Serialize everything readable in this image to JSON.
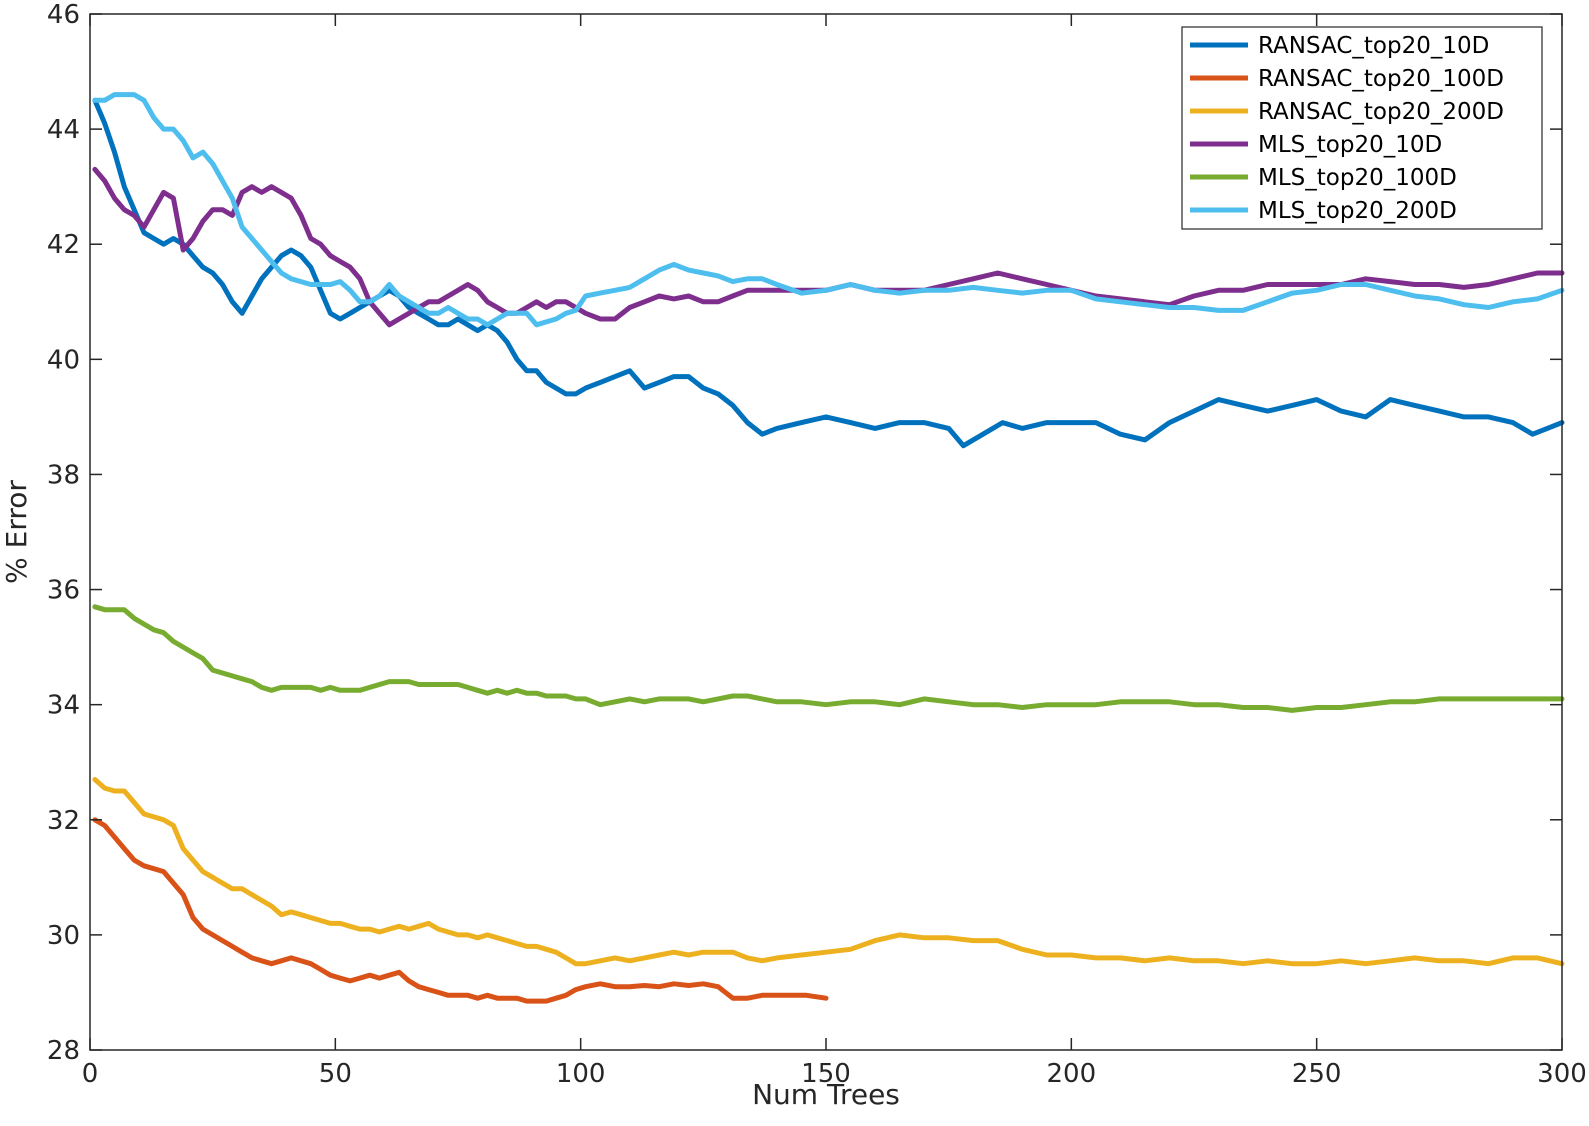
{
  "chart_data": {
    "type": "line",
    "xlabel": "Num Trees",
    "ylabel": "% Error",
    "xlim": [
      0,
      300
    ],
    "ylim": [
      28,
      46
    ],
    "xticks": [
      0,
      50,
      100,
      150,
      200,
      250,
      300
    ],
    "yticks": [
      28,
      30,
      32,
      34,
      36,
      38,
      40,
      42,
      44,
      46
    ],
    "grid": false,
    "legend_position": "top-right",
    "series": [
      {
        "name": "RANSAC_top20_10D",
        "color": "#0072BD",
        "x": [
          1,
          3,
          5,
          7,
          9,
          11,
          13,
          15,
          17,
          19,
          21,
          23,
          25,
          27,
          29,
          31,
          33,
          35,
          37,
          39,
          41,
          43,
          45,
          47,
          49,
          51,
          53,
          55,
          57,
          59,
          61,
          63,
          65,
          67,
          69,
          71,
          73,
          75,
          77,
          79,
          81,
          83,
          85,
          87,
          89,
          91,
          93,
          95,
          97,
          99,
          101,
          104,
          107,
          110,
          113,
          116,
          119,
          122,
          125,
          128,
          131,
          134,
          137,
          140,
          145,
          150,
          155,
          160,
          165,
          170,
          175,
          178,
          182,
          186,
          190,
          195,
          200,
          205,
          210,
          215,
          220,
          225,
          230,
          235,
          240,
          245,
          250,
          255,
          260,
          265,
          270,
          275,
          280,
          285,
          290,
          294,
          297,
          300
        ],
        "y": [
          44.5,
          44.1,
          43.6,
          43.0,
          42.6,
          42.2,
          42.1,
          42.0,
          42.1,
          42.0,
          41.8,
          41.6,
          41.5,
          41.3,
          41.0,
          40.8,
          41.1,
          41.4,
          41.6,
          41.8,
          41.9,
          41.8,
          41.6,
          41.2,
          40.8,
          40.7,
          40.8,
          40.9,
          41.0,
          41.1,
          41.2,
          41.1,
          40.9,
          40.8,
          40.7,
          40.6,
          40.6,
          40.7,
          40.6,
          40.5,
          40.6,
          40.5,
          40.3,
          40.0,
          39.8,
          39.8,
          39.6,
          39.5,
          39.4,
          39.4,
          39.5,
          39.6,
          39.7,
          39.8,
          39.5,
          39.6,
          39.7,
          39.7,
          39.5,
          39.4,
          39.2,
          38.9,
          38.7,
          38.8,
          38.9,
          39.0,
          38.9,
          38.8,
          38.9,
          38.9,
          38.8,
          38.5,
          38.7,
          38.9,
          38.8,
          38.9,
          38.9,
          38.9,
          38.7,
          38.6,
          38.9,
          39.1,
          39.3,
          39.2,
          39.1,
          39.2,
          39.3,
          39.1,
          39.0,
          39.3,
          39.2,
          39.1,
          39.0,
          39.0,
          38.9,
          38.7,
          38.8,
          38.9
        ]
      },
      {
        "name": "RANSAC_top20_100D",
        "color": "#D95319",
        "x": [
          1,
          3,
          5,
          7,
          9,
          11,
          13,
          15,
          17,
          19,
          21,
          23,
          25,
          27,
          29,
          31,
          33,
          35,
          37,
          39,
          41,
          43,
          45,
          47,
          49,
          51,
          53,
          55,
          57,
          59,
          61,
          63,
          65,
          67,
          69,
          71,
          73,
          75,
          77,
          79,
          81,
          83,
          85,
          87,
          89,
          91,
          93,
          95,
          97,
          99,
          101,
          104,
          107,
          110,
          113,
          116,
          119,
          122,
          125,
          128,
          131,
          134,
          137,
          140,
          143,
          146,
          150
        ],
        "y": [
          32.0,
          31.9,
          31.7,
          31.5,
          31.3,
          31.2,
          31.15,
          31.1,
          30.9,
          30.7,
          30.3,
          30.1,
          30.0,
          29.9,
          29.8,
          29.7,
          29.6,
          29.55,
          29.5,
          29.55,
          29.6,
          29.55,
          29.5,
          29.4,
          29.3,
          29.25,
          29.2,
          29.25,
          29.3,
          29.25,
          29.3,
          29.35,
          29.2,
          29.1,
          29.05,
          29.0,
          28.95,
          28.95,
          28.95,
          28.9,
          28.95,
          28.9,
          28.9,
          28.9,
          28.85,
          28.85,
          28.85,
          28.9,
          28.95,
          29.05,
          29.1,
          29.15,
          29.1,
          29.1,
          29.12,
          29.1,
          29.15,
          29.12,
          29.15,
          29.1,
          28.9,
          28.9,
          28.95,
          28.95,
          28.95,
          28.95,
          28.9
        ]
      },
      {
        "name": "RANSAC_top20_200D",
        "color": "#EDB120",
        "x": [
          1,
          3,
          5,
          7,
          9,
          11,
          13,
          15,
          17,
          19,
          21,
          23,
          25,
          27,
          29,
          31,
          33,
          35,
          37,
          39,
          41,
          43,
          45,
          47,
          49,
          51,
          53,
          55,
          57,
          59,
          61,
          63,
          65,
          67,
          69,
          71,
          73,
          75,
          77,
          79,
          81,
          83,
          85,
          87,
          89,
          91,
          93,
          95,
          97,
          99,
          101,
          104,
          107,
          110,
          113,
          116,
          119,
          122,
          125,
          128,
          131,
          134,
          137,
          140,
          145,
          150,
          155,
          160,
          165,
          170,
          175,
          180,
          185,
          190,
          195,
          200,
          205,
          210,
          215,
          220,
          225,
          230,
          235,
          240,
          245,
          250,
          255,
          260,
          265,
          270,
          275,
          280,
          285,
          290,
          295,
          300
        ],
        "y": [
          32.7,
          32.55,
          32.5,
          32.5,
          32.3,
          32.1,
          32.05,
          32.0,
          31.9,
          31.5,
          31.3,
          31.1,
          31.0,
          30.9,
          30.8,
          30.8,
          30.7,
          30.6,
          30.5,
          30.35,
          30.4,
          30.35,
          30.3,
          30.25,
          30.2,
          30.2,
          30.15,
          30.1,
          30.1,
          30.05,
          30.1,
          30.15,
          30.1,
          30.15,
          30.2,
          30.1,
          30.05,
          30.0,
          30.0,
          29.95,
          30.0,
          29.95,
          29.9,
          29.85,
          29.8,
          29.8,
          29.75,
          29.7,
          29.6,
          29.5,
          29.5,
          29.55,
          29.6,
          29.55,
          29.6,
          29.65,
          29.7,
          29.65,
          29.7,
          29.7,
          29.7,
          29.6,
          29.55,
          29.6,
          29.65,
          29.7,
          29.75,
          29.9,
          30.0,
          29.95,
          29.95,
          29.9,
          29.9,
          29.75,
          29.65,
          29.65,
          29.6,
          29.6,
          29.55,
          29.6,
          29.55,
          29.55,
          29.5,
          29.55,
          29.5,
          29.5,
          29.55,
          29.5,
          29.55,
          29.6,
          29.55,
          29.55,
          29.5,
          29.6,
          29.6,
          29.5
        ]
      },
      {
        "name": "MLS_top20_10D",
        "color": "#7E2F8E",
        "x": [
          1,
          3,
          5,
          7,
          9,
          11,
          13,
          15,
          17,
          19,
          21,
          23,
          25,
          27,
          29,
          31,
          33,
          35,
          37,
          39,
          41,
          43,
          45,
          47,
          49,
          51,
          53,
          55,
          57,
          59,
          61,
          63,
          65,
          67,
          69,
          71,
          73,
          75,
          77,
          79,
          81,
          83,
          85,
          87,
          89,
          91,
          93,
          95,
          97,
          99,
          101,
          104,
          107,
          110,
          113,
          116,
          119,
          122,
          125,
          128,
          131,
          134,
          137,
          140,
          145,
          150,
          155,
          160,
          165,
          170,
          175,
          180,
          185,
          190,
          195,
          200,
          205,
          210,
          215,
          220,
          225,
          230,
          235,
          240,
          245,
          250,
          255,
          260,
          265,
          270,
          275,
          280,
          285,
          290,
          295,
          300
        ],
        "y": [
          43.3,
          43.1,
          42.8,
          42.6,
          42.5,
          42.3,
          42.6,
          42.9,
          42.8,
          41.9,
          42.1,
          42.4,
          42.6,
          42.6,
          42.5,
          42.9,
          43.0,
          42.9,
          43.0,
          42.9,
          42.8,
          42.5,
          42.1,
          42.0,
          41.8,
          41.7,
          41.6,
          41.4,
          41.0,
          40.8,
          40.6,
          40.7,
          40.8,
          40.9,
          41.0,
          41.0,
          41.1,
          41.2,
          41.3,
          41.2,
          41.0,
          40.9,
          40.8,
          40.8,
          40.9,
          41.0,
          40.9,
          41.0,
          41.0,
          40.9,
          40.8,
          40.7,
          40.7,
          40.9,
          41.0,
          41.1,
          41.05,
          41.1,
          41.0,
          41.0,
          41.1,
          41.2,
          41.2,
          41.2,
          41.2,
          41.2,
          41.3,
          41.2,
          41.2,
          41.2,
          41.3,
          41.4,
          41.5,
          41.4,
          41.3,
          41.2,
          41.1,
          41.05,
          41.0,
          40.95,
          41.1,
          41.2,
          41.2,
          41.3,
          41.3,
          41.3,
          41.3,
          41.4,
          41.35,
          41.3,
          41.3,
          41.25,
          41.3,
          41.4,
          41.5,
          41.5
        ]
      },
      {
        "name": "MLS_top20_100D",
        "color": "#77AC30",
        "x": [
          1,
          3,
          5,
          7,
          9,
          11,
          13,
          15,
          17,
          19,
          21,
          23,
          25,
          27,
          29,
          31,
          33,
          35,
          37,
          39,
          41,
          43,
          45,
          47,
          49,
          51,
          53,
          55,
          57,
          59,
          61,
          63,
          65,
          67,
          69,
          71,
          73,
          75,
          77,
          79,
          81,
          83,
          85,
          87,
          89,
          91,
          93,
          95,
          97,
          99,
          101,
          104,
          107,
          110,
          113,
          116,
          119,
          122,
          125,
          128,
          131,
          134,
          137,
          140,
          145,
          150,
          155,
          160,
          165,
          170,
          175,
          180,
          185,
          190,
          195,
          200,
          205,
          210,
          215,
          220,
          225,
          230,
          235,
          240,
          245,
          250,
          255,
          260,
          265,
          270,
          275,
          280,
          285,
          290,
          295,
          300
        ],
        "y": [
          35.7,
          35.65,
          35.65,
          35.65,
          35.5,
          35.4,
          35.3,
          35.25,
          35.1,
          35.0,
          34.9,
          34.8,
          34.6,
          34.55,
          34.5,
          34.45,
          34.4,
          34.3,
          34.25,
          34.3,
          34.3,
          34.3,
          34.3,
          34.25,
          34.3,
          34.25,
          34.25,
          34.25,
          34.3,
          34.35,
          34.4,
          34.4,
          34.4,
          34.35,
          34.35,
          34.35,
          34.35,
          34.35,
          34.3,
          34.25,
          34.2,
          34.25,
          34.2,
          34.25,
          34.2,
          34.2,
          34.15,
          34.15,
          34.15,
          34.1,
          34.1,
          34.0,
          34.05,
          34.1,
          34.05,
          34.1,
          34.1,
          34.1,
          34.05,
          34.1,
          34.15,
          34.15,
          34.1,
          34.05,
          34.05,
          34.0,
          34.05,
          34.05,
          34.0,
          34.1,
          34.05,
          34.0,
          34.0,
          33.95,
          34.0,
          34.0,
          34.0,
          34.05,
          34.05,
          34.05,
          34.0,
          34.0,
          33.95,
          33.95,
          33.9,
          33.95,
          33.95,
          34.0,
          34.05,
          34.05,
          34.1,
          34.1,
          34.1,
          34.1,
          34.1,
          34.1
        ]
      },
      {
        "name": "MLS_top20_200D",
        "color": "#4DBEEE",
        "x": [
          1,
          3,
          5,
          7,
          9,
          11,
          13,
          15,
          17,
          19,
          21,
          23,
          25,
          27,
          29,
          31,
          33,
          35,
          37,
          39,
          41,
          43,
          45,
          47,
          49,
          51,
          53,
          55,
          57,
          59,
          61,
          63,
          65,
          67,
          69,
          71,
          73,
          75,
          77,
          79,
          81,
          83,
          85,
          87,
          89,
          91,
          93,
          95,
          97,
          99,
          101,
          104,
          107,
          110,
          113,
          116,
          119,
          122,
          125,
          128,
          131,
          134,
          137,
          140,
          145,
          150,
          155,
          160,
          165,
          170,
          175,
          180,
          185,
          190,
          195,
          200,
          205,
          210,
          215,
          220,
          225,
          230,
          235,
          240,
          245,
          250,
          255,
          260,
          265,
          270,
          275,
          280,
          285,
          290,
          295,
          300
        ],
        "y": [
          44.5,
          44.5,
          44.6,
          44.6,
          44.6,
          44.5,
          44.2,
          44.0,
          44.0,
          43.8,
          43.5,
          43.6,
          43.4,
          43.1,
          42.8,
          42.3,
          42.1,
          41.9,
          41.7,
          41.5,
          41.4,
          41.35,
          41.3,
          41.3,
          41.3,
          41.35,
          41.2,
          41.0,
          41.0,
          41.1,
          41.3,
          41.1,
          41.0,
          40.9,
          40.8,
          40.8,
          40.9,
          40.8,
          40.7,
          40.7,
          40.6,
          40.7,
          40.8,
          40.8,
          40.8,
          40.6,
          40.65,
          40.7,
          40.8,
          40.85,
          41.1,
          41.15,
          41.2,
          41.25,
          41.4,
          41.55,
          41.65,
          41.55,
          41.5,
          41.45,
          41.35,
          41.4,
          41.4,
          41.3,
          41.15,
          41.2,
          41.3,
          41.2,
          41.15,
          41.2,
          41.2,
          41.25,
          41.2,
          41.15,
          41.2,
          41.2,
          41.05,
          41.0,
          40.95,
          40.9,
          40.9,
          40.85,
          40.85,
          41.0,
          41.15,
          41.2,
          41.3,
          41.3,
          41.2,
          41.1,
          41.05,
          40.95,
          40.9,
          41.0,
          41.05,
          41.2
        ]
      }
    ]
  }
}
